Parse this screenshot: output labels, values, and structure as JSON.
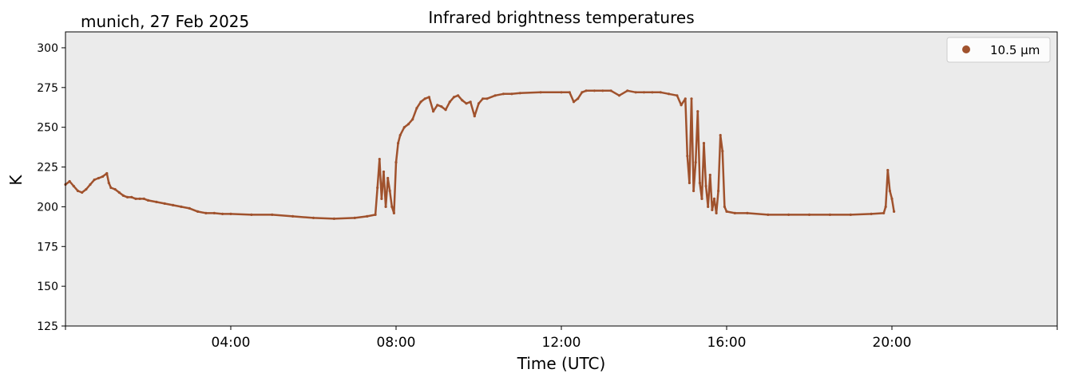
{
  "header": {
    "location_date": "munich, 27 Feb 2025"
  },
  "chart_data": {
    "type": "scatter",
    "title": "Infrared brightness temperatures",
    "xlabel": "Time (UTC)",
    "ylabel": "K",
    "xlim_hours": [
      0,
      24
    ],
    "ylim": [
      125,
      310
    ],
    "x_ticks_hours": [
      4,
      8,
      12,
      16,
      20
    ],
    "x_tick_labels": [
      "04:00",
      "08:00",
      "12:00",
      "16:00",
      "20:00"
    ],
    "y_ticks": [
      125,
      150,
      175,
      200,
      225,
      250,
      275,
      300
    ],
    "y_tick_labels": [
      "125",
      "150",
      "175",
      "200",
      "225",
      "250",
      "275",
      "300"
    ],
    "grid": false,
    "legend_position": "top-right",
    "plot_background": "#ebebeb",
    "series": [
      {
        "name": "10.5 µm",
        "color": "#a0522d",
        "points": [
          [
            0.0,
            214
          ],
          [
            0.1,
            216
          ],
          [
            0.2,
            213
          ],
          [
            0.3,
            210
          ],
          [
            0.4,
            209
          ],
          [
            0.5,
            211
          ],
          [
            0.6,
            214
          ],
          [
            0.7,
            217
          ],
          [
            0.8,
            218
          ],
          [
            0.9,
            219
          ],
          [
            1.0,
            221
          ],
          [
            1.05,
            215
          ],
          [
            1.1,
            212
          ],
          [
            1.2,
            211
          ],
          [
            1.3,
            209
          ],
          [
            1.4,
            207
          ],
          [
            1.5,
            206
          ],
          [
            1.6,
            206
          ],
          [
            1.7,
            205
          ],
          [
            1.8,
            205
          ],
          [
            1.9,
            205
          ],
          [
            2.0,
            204
          ],
          [
            2.2,
            203
          ],
          [
            2.4,
            202
          ],
          [
            2.6,
            201
          ],
          [
            2.8,
            200
          ],
          [
            3.0,
            199
          ],
          [
            3.2,
            197
          ],
          [
            3.4,
            196
          ],
          [
            3.6,
            196
          ],
          [
            3.8,
            195.5
          ],
          [
            4.0,
            195.5
          ],
          [
            4.5,
            195
          ],
          [
            5.0,
            195
          ],
          [
            5.5,
            194
          ],
          [
            6.0,
            193
          ],
          [
            6.5,
            192.5
          ],
          [
            7.0,
            193
          ],
          [
            7.3,
            194
          ],
          [
            7.5,
            195
          ],
          [
            7.55,
            212
          ],
          [
            7.6,
            230
          ],
          [
            7.65,
            205
          ],
          [
            7.7,
            222
          ],
          [
            7.75,
            200
          ],
          [
            7.8,
            218
          ],
          [
            7.85,
            210
          ],
          [
            7.9,
            200
          ],
          [
            7.95,
            196
          ],
          [
            8.0,
            228
          ],
          [
            8.05,
            240
          ],
          [
            8.1,
            245
          ],
          [
            8.2,
            250
          ],
          [
            8.3,
            252
          ],
          [
            8.4,
            255
          ],
          [
            8.5,
            262
          ],
          [
            8.6,
            266
          ],
          [
            8.7,
            268
          ],
          [
            8.8,
            269
          ],
          [
            8.9,
            260
          ],
          [
            9.0,
            264
          ],
          [
            9.1,
            263
          ],
          [
            9.2,
            261
          ],
          [
            9.3,
            266
          ],
          [
            9.4,
            269
          ],
          [
            9.5,
            270
          ],
          [
            9.6,
            267
          ],
          [
            9.7,
            265
          ],
          [
            9.8,
            266
          ],
          [
            9.9,
            257
          ],
          [
            10.0,
            265
          ],
          [
            10.1,
            268
          ],
          [
            10.2,
            268
          ],
          [
            10.4,
            270
          ],
          [
            10.6,
            271
          ],
          [
            10.8,
            271
          ],
          [
            11.0,
            271.5
          ],
          [
            11.5,
            272
          ],
          [
            12.0,
            272
          ],
          [
            12.2,
            272
          ],
          [
            12.3,
            266
          ],
          [
            12.4,
            268
          ],
          [
            12.5,
            272
          ],
          [
            12.6,
            273
          ],
          [
            12.8,
            273
          ],
          [
            13.0,
            273
          ],
          [
            13.2,
            273
          ],
          [
            13.4,
            270
          ],
          [
            13.6,
            273
          ],
          [
            13.8,
            272
          ],
          [
            14.0,
            272
          ],
          [
            14.2,
            272
          ],
          [
            14.4,
            272
          ],
          [
            14.6,
            271
          ],
          [
            14.8,
            270
          ],
          [
            14.9,
            264
          ],
          [
            15.0,
            268
          ],
          [
            15.05,
            232
          ],
          [
            15.1,
            215
          ],
          [
            15.15,
            268
          ],
          [
            15.2,
            210
          ],
          [
            15.25,
            228
          ],
          [
            15.3,
            260
          ],
          [
            15.35,
            215
          ],
          [
            15.4,
            205
          ],
          [
            15.45,
            240
          ],
          [
            15.5,
            213
          ],
          [
            15.55,
            200
          ],
          [
            15.6,
            220
          ],
          [
            15.65,
            198
          ],
          [
            15.7,
            205
          ],
          [
            15.75,
            196
          ],
          [
            15.8,
            210
          ],
          [
            15.85,
            245
          ],
          [
            15.9,
            235
          ],
          [
            15.95,
            200
          ],
          [
            16.0,
            197
          ],
          [
            16.2,
            196
          ],
          [
            16.5,
            196
          ],
          [
            17.0,
            195
          ],
          [
            17.5,
            195
          ],
          [
            18.0,
            195
          ],
          [
            18.5,
            195
          ],
          [
            19.0,
            195
          ],
          [
            19.5,
            195.5
          ],
          [
            19.8,
            196
          ],
          [
            19.85,
            200
          ],
          [
            19.9,
            223
          ],
          [
            19.95,
            210
          ],
          [
            20.0,
            205
          ],
          [
            20.05,
            197
          ]
        ]
      }
    ]
  }
}
